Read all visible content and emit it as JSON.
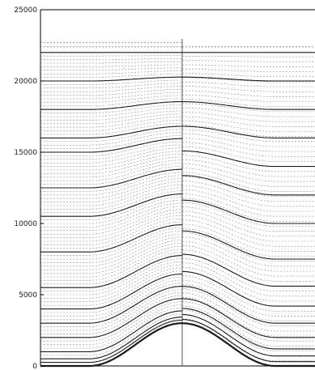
{
  "chart_data": {
    "type": "line",
    "title": "",
    "xlabel": "",
    "ylabel": "",
    "ylim": [
      0,
      25000
    ],
    "y_ticks": [
      0,
      5000,
      10000,
      15000,
      20000,
      25000
    ],
    "y_tick_labels": [
      "0",
      "5000",
      "10000",
      "15000",
      "20000",
      "25000"
    ],
    "x_ticks_visible": false,
    "grid": false,
    "legend": "none",
    "description_of_series": "terrain-following vertical coordinate levels over a smooth bump; left half and right half panels show different level spacing",
    "bump_peak_height": 3000,
    "left_panel": {
      "solid_level_heights": [
        0,
        250,
        500,
        1000,
        2000,
        3000,
        4000,
        5500,
        8000,
        10500,
        12500,
        15000,
        16000,
        18000,
        20000,
        22000
      ],
      "dashed_level_step": 250,
      "top_dashed_heights": [
        22400,
        22700
      ]
    },
    "right_panel": {
      "solid_level_heights": [
        0,
        300,
        700,
        1200,
        2000,
        3000,
        4200,
        5600,
        7500,
        10000,
        12000,
        14000,
        16000,
        18000,
        20000,
        22000
      ],
      "dashed_level_step": 350,
      "top_dashed_heights": [
        22400
      ]
    },
    "colors": {
      "solid_line": "#1a1a1a",
      "dashed_line": "#888888",
      "axis": "#000000",
      "background": "#ffffff"
    }
  }
}
